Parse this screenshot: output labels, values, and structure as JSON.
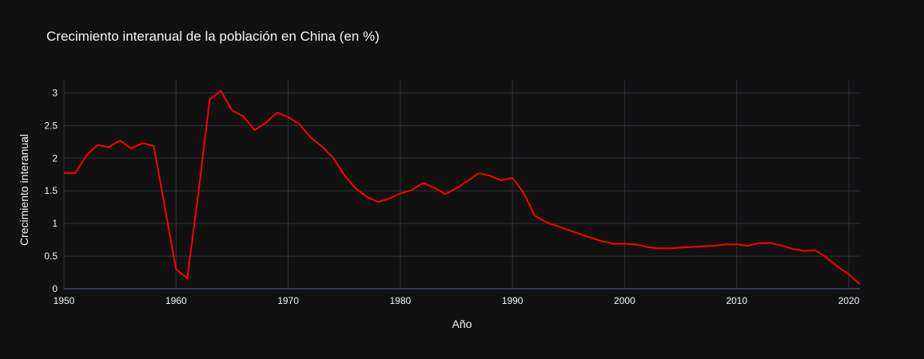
{
  "chart_data": {
    "type": "line",
    "title": "Crecimiento interanual de la población en China (en %)",
    "xlabel": "Año",
    "ylabel": "Crecimiento interanual",
    "xlim": [
      1950,
      2021
    ],
    "ylim": [
      0,
      3.2
    ],
    "xticks": [
      1950,
      1960,
      1970,
      1980,
      1990,
      2000,
      2010,
      2020
    ],
    "yticks": [
      0,
      0.5,
      1,
      1.5,
      2,
      2.5,
      3
    ],
    "ytick_labels": [
      "0",
      "0.5",
      "1",
      "1.5",
      "2",
      "2.5",
      "3"
    ],
    "grid": true,
    "colors": {
      "background": "#111111",
      "grid": "#283442",
      "zero_line": "#506784",
      "text": "#f2f5fa",
      "series": "#ff0000"
    },
    "series": [
      {
        "x": [
          1950,
          1951,
          1952,
          1953,
          1954,
          1955,
          1956,
          1957,
          1958,
          1959,
          1960,
          1961,
          1962,
          1963,
          1964,
          1965,
          1966,
          1967,
          1968,
          1969,
          1970,
          1971,
          1972,
          1973,
          1974,
          1975,
          1976,
          1977,
          1978,
          1979,
          1980,
          1981,
          1982,
          1983,
          1984,
          1985,
          1986,
          1987,
          1988,
          1989,
          1990,
          1991,
          1992,
          1993,
          1994,
          1995,
          1996,
          1997,
          1998,
          1999,
          2000,
          2001,
          2002,
          2003,
          2004,
          2005,
          2006,
          2007,
          2008,
          2009,
          2010,
          2011,
          2012,
          2013,
          2014,
          2015,
          2016,
          2017,
          2018,
          2019,
          2020,
          2021
        ],
        "values": [
          1.77,
          1.77,
          2.04,
          2.2,
          2.17,
          2.27,
          2.15,
          2.23,
          2.19,
          1.25,
          0.3,
          0.16,
          1.48,
          2.9,
          3.03,
          2.73,
          2.64,
          2.43,
          2.54,
          2.7,
          2.63,
          2.52,
          2.32,
          2.18,
          2.01,
          1.74,
          1.54,
          1.41,
          1.33,
          1.38,
          1.46,
          1.51,
          1.62,
          1.55,
          1.45,
          1.54,
          1.65,
          1.77,
          1.73,
          1.66,
          1.7,
          1.47,
          1.12,
          1.02,
          0.96,
          0.9,
          0.84,
          0.78,
          0.73,
          0.69,
          0.69,
          0.68,
          0.64,
          0.62,
          0.62,
          0.63,
          0.64,
          0.65,
          0.66,
          0.68,
          0.68,
          0.66,
          0.7,
          0.7,
          0.66,
          0.61,
          0.58,
          0.59,
          0.48,
          0.34,
          0.22,
          0.07
        ]
      }
    ]
  }
}
